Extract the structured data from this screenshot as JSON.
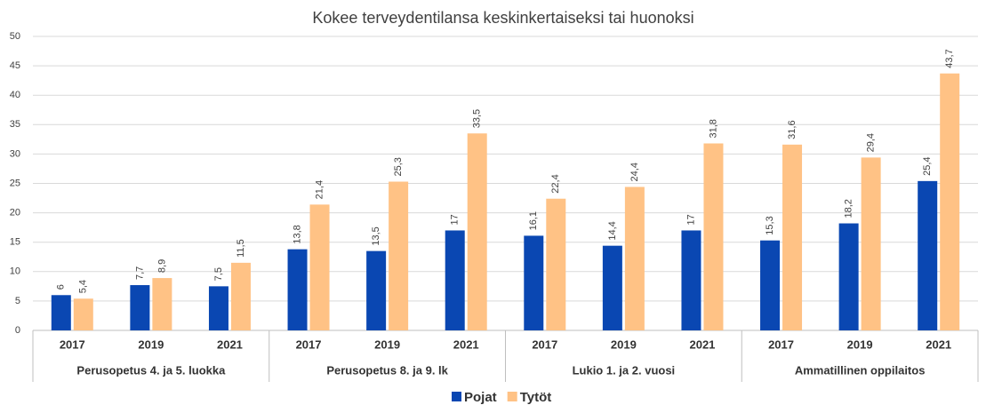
{
  "chart_data": {
    "type": "bar",
    "title": "Kokee terveydentilansa keskinkertaiseksi tai huonoksi",
    "categories": [
      "2017",
      "2019",
      "2021",
      "2017",
      "2019",
      "2021",
      "2017",
      "2019",
      "2021",
      "2017",
      "2019",
      "2021"
    ],
    "groups": [
      "Perusopetus 4. ja 5. luokka",
      "Perusopetus 8. ja 9. lk",
      "Lukio 1. ja 2. vuosi",
      "Ammatillinen oppilaitos"
    ],
    "series": [
      {
        "name": "Pojat",
        "color": "#0a47b2",
        "values": [
          6,
          7.7,
          7.5,
          13.8,
          13.5,
          17,
          16.1,
          14.4,
          17,
          15.3,
          18.2,
          25.4
        ],
        "value_labels": [
          "6",
          "7,7",
          "7,5",
          "13,8",
          "13,5",
          "17",
          "16,1",
          "14,4",
          "17",
          "15,3",
          "18,2",
          "25,4"
        ]
      },
      {
        "name": "Tytöt",
        "color": "#ffc285",
        "values": [
          5.4,
          8.9,
          11.5,
          21.4,
          25.3,
          33.5,
          22.4,
          24.4,
          31.8,
          31.6,
          29.4,
          43.7
        ],
        "value_labels": [
          "5,4",
          "8,9",
          "11,5",
          "21,4",
          "25,3",
          "33,5",
          "22,4",
          "24,4",
          "31,8",
          "31,6",
          "29,4",
          "43,7"
        ]
      }
    ],
    "ylim": [
      0,
      50
    ],
    "yticks": [
      0,
      5,
      10,
      15,
      20,
      25,
      30,
      35,
      40,
      45,
      50
    ],
    "grid": true,
    "legend": "bottom"
  }
}
